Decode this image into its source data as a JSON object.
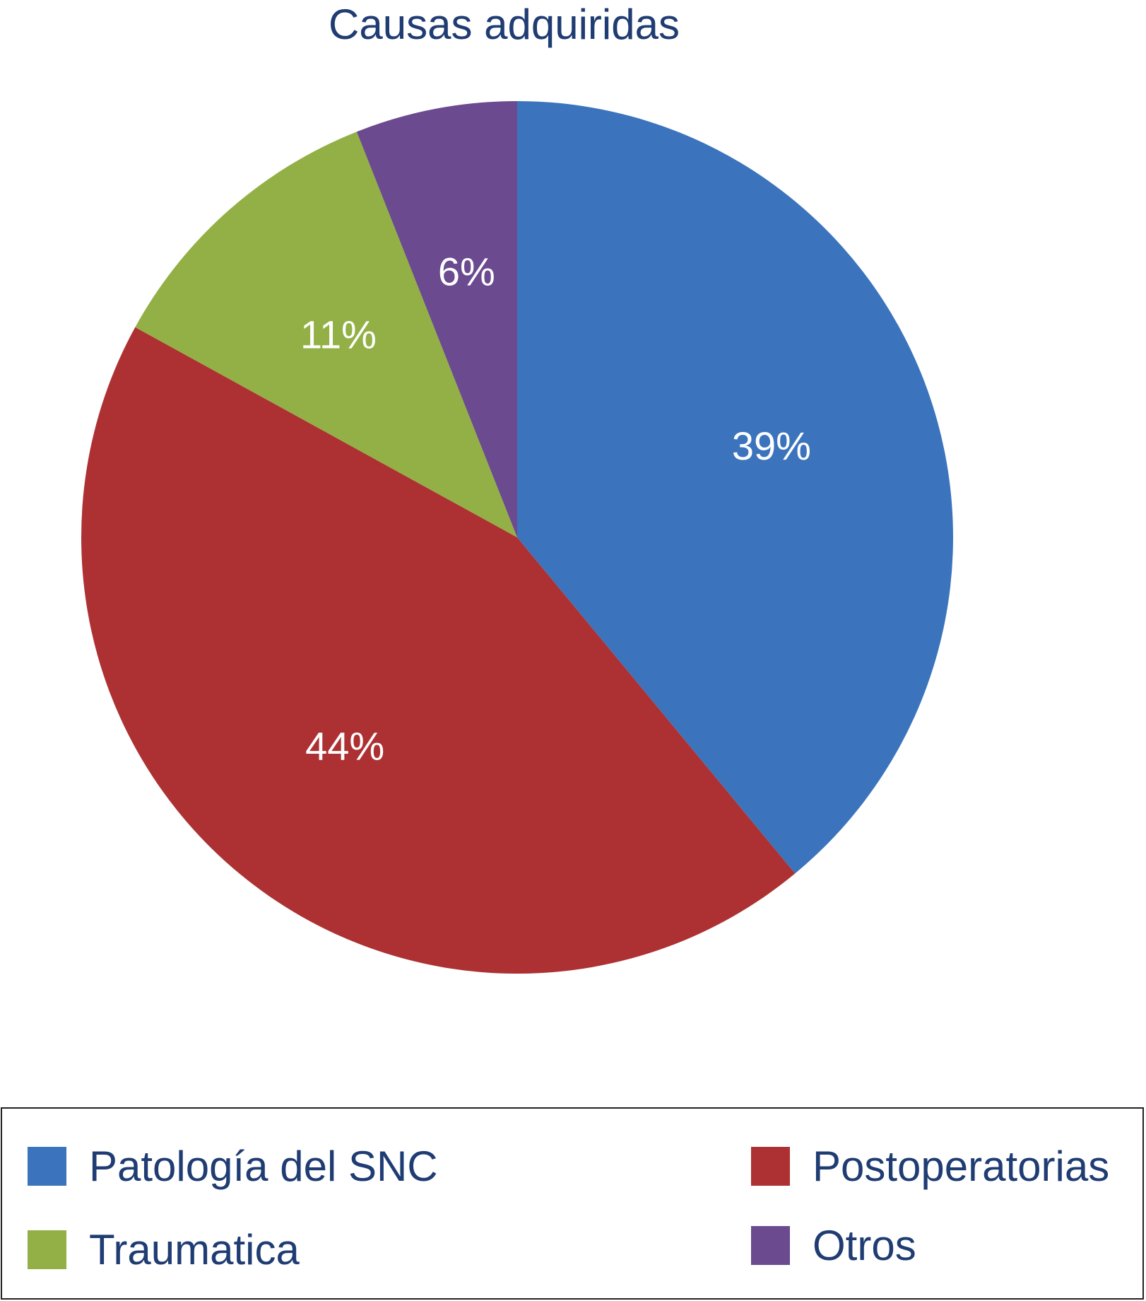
{
  "chart_data": {
    "type": "pie",
    "title": "Causas adquiridas",
    "slices": [
      {
        "name": "Patología del SNC",
        "value": 39,
        "label": "39%",
        "color": "#3b74bd"
      },
      {
        "name": "Postoperatorias",
        "value": 44,
        "label": "44%",
        "color": "#ad3132"
      },
      {
        "name": "Traumatica",
        "value": 11,
        "label": "11%",
        "color": "#92b045"
      },
      {
        "name": "Otros",
        "value": 6,
        "label": "6%",
        "color": "#6b4a90"
      }
    ],
    "start_angle_deg": 0,
    "direction": "clockwise",
    "legend_position": "bottom",
    "legend": [
      {
        "label": "Patología del SNC",
        "color": "#3b74bd"
      },
      {
        "label": "Postoperatorias",
        "color": "#ad3132"
      },
      {
        "label": "Traumatica",
        "color": "#92b045"
      },
      {
        "label": "Otros",
        "color": "#6b4a90"
      }
    ]
  }
}
